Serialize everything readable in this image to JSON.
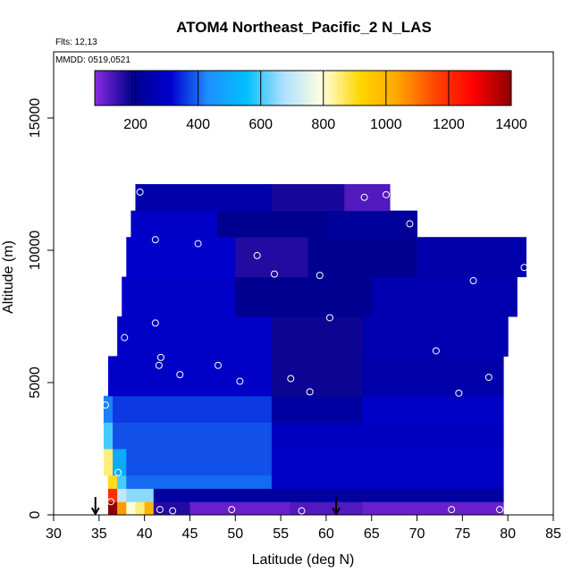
{
  "chart_data": {
    "type": "heatmap",
    "title": "ATOM4 Northeast_Pacific_2 N_LAS",
    "flights_label": "Flts: 12,13",
    "dates_label": "MMDD: 0519,0521",
    "xlabel": "Latitude (deg N)",
    "ylabel": "Altitude (m)",
    "xlim": [
      30,
      85
    ],
    "ylim": [
      0,
      17500
    ],
    "x_ticks": [
      "30",
      "35",
      "40",
      "45",
      "50",
      "55",
      "60",
      "65",
      "70",
      "75",
      "80",
      "85"
    ],
    "y_ticks": [
      "0",
      "5000",
      "10000",
      "15000"
    ],
    "colorbar": {
      "range": [
        70,
        1400
      ],
      "tick_values": [
        200,
        400,
        600,
        800,
        1000,
        1200,
        1400
      ],
      "tick_labels": [
        "200",
        "400",
        "600",
        "800",
        "1000",
        "1200",
        "1400"
      ],
      "colors": [
        "#8a2be2",
        "#00008b",
        "#0000cd",
        "#1e90ff",
        "#00bfff",
        "#b0e0ff",
        "#ffffe0",
        "#ffd700",
        "#ffa500",
        "#ff4500",
        "#ff0000",
        "#8b0000"
      ]
    },
    "grid": false,
    "legend_position": "top",
    "field_rows": [
      {
        "alt": [
          0,
          500
        ],
        "cells": [
          [
            36,
            37,
            1400
          ],
          [
            37,
            38,
            1050
          ],
          [
            38,
            39,
            800
          ],
          [
            39,
            40,
            850
          ],
          [
            40,
            41,
            1000
          ],
          [
            41,
            45,
            160
          ],
          [
            45,
            56,
            100
          ],
          [
            56,
            64,
            120
          ],
          [
            64,
            79.5,
            100
          ]
        ]
      },
      {
        "alt": [
          500,
          1000
        ],
        "cells": [
          [
            36,
            37,
            1200
          ],
          [
            37,
            38,
            700
          ],
          [
            38,
            41,
            650
          ],
          [
            41,
            79.5,
            230
          ]
        ]
      },
      {
        "alt": [
          1000,
          1500
        ],
        "cells": [
          [
            36,
            37,
            900
          ],
          [
            37,
            38,
            600
          ],
          [
            38,
            54,
            400
          ],
          [
            54,
            79.5,
            300
          ]
        ]
      },
      {
        "alt": [
          1500,
          2500
        ],
        "cells": [
          [
            35.5,
            36.5,
            850
          ],
          [
            36.5,
            38,
            500
          ],
          [
            38,
            54,
            380
          ],
          [
            54,
            79.5,
            300
          ]
        ]
      },
      {
        "alt": [
          2500,
          3500
        ],
        "cells": [
          [
            35.5,
            36.5,
            600
          ],
          [
            36.5,
            54,
            380
          ],
          [
            54,
            79.5,
            290
          ]
        ]
      },
      {
        "alt": [
          3500,
          4500
        ],
        "cells": [
          [
            35.5,
            36.5,
            420
          ],
          [
            36.5,
            54,
            360
          ],
          [
            54,
            64,
            230
          ],
          [
            64,
            79.5,
            300
          ]
        ]
      },
      {
        "alt": [
          4500,
          6000
        ],
        "cells": [
          [
            36,
            54,
            300
          ],
          [
            54,
            64,
            180
          ],
          [
            64,
            79.5,
            250
          ]
        ]
      },
      {
        "alt": [
          6000,
          7500
        ],
        "cells": [
          [
            37,
            54,
            300
          ],
          [
            54,
            64,
            180
          ],
          [
            64,
            80,
            260
          ]
        ]
      },
      {
        "alt": [
          7500,
          9000
        ],
        "cells": [
          [
            37.5,
            50,
            300
          ],
          [
            50,
            65,
            200
          ],
          [
            65,
            81,
            260
          ]
        ]
      },
      {
        "alt": [
          9000,
          10500
        ],
        "cells": [
          [
            38,
            50,
            310
          ],
          [
            50,
            58,
            160
          ],
          [
            58,
            70,
            200
          ],
          [
            70,
            82,
            250
          ]
        ]
      },
      {
        "alt": [
          10500,
          11500
        ],
        "cells": [
          [
            38.5,
            48,
            300
          ],
          [
            48,
            60,
            200
          ],
          [
            60,
            70,
            220
          ]
        ]
      },
      {
        "alt": [
          11500,
          12500
        ],
        "cells": [
          [
            39,
            54,
            250
          ],
          [
            54,
            62,
            170
          ],
          [
            62,
            67,
            120
          ]
        ]
      }
    ],
    "observations": [
      {
        "lat": 39.5,
        "alt": 12200
      },
      {
        "lat": 64.2,
        "alt": 12000
      },
      {
        "lat": 66.6,
        "alt": 12100
      },
      {
        "lat": 69.2,
        "alt": 11000
      },
      {
        "lat": 41.2,
        "alt": 10400
      },
      {
        "lat": 45.9,
        "alt": 10250
      },
      {
        "lat": 52.4,
        "alt": 9800
      },
      {
        "lat": 54.3,
        "alt": 9100
      },
      {
        "lat": 59.3,
        "alt": 9050
      },
      {
        "lat": 76.2,
        "alt": 8850
      },
      {
        "lat": 81.8,
        "alt": 9350
      },
      {
        "lat": 41.2,
        "alt": 7250
      },
      {
        "lat": 37.8,
        "alt": 6700
      },
      {
        "lat": 60.4,
        "alt": 7450
      },
      {
        "lat": 41.8,
        "alt": 5950
      },
      {
        "lat": 41.6,
        "alt": 5650
      },
      {
        "lat": 48.1,
        "alt": 5650
      },
      {
        "lat": 43.9,
        "alt": 5300
      },
      {
        "lat": 50.5,
        "alt": 5050
      },
      {
        "lat": 56.1,
        "alt": 5150
      },
      {
        "lat": 58.2,
        "alt": 4650
      },
      {
        "lat": 72.1,
        "alt": 6200
      },
      {
        "lat": 74.6,
        "alt": 4600
      },
      {
        "lat": 77.9,
        "alt": 5200
      },
      {
        "lat": 80.3,
        "alt": 4400
      },
      {
        "lat": 35.7,
        "alt": 4150
      },
      {
        "lat": 37.1,
        "alt": 1600
      },
      {
        "lat": 36.3,
        "alt": 500
      },
      {
        "lat": 41.7,
        "alt": 200
      },
      {
        "lat": 43.1,
        "alt": 150
      },
      {
        "lat": 49.6,
        "alt": 200
      },
      {
        "lat": 57.3,
        "alt": 150
      },
      {
        "lat": 73.8,
        "alt": 200
      },
      {
        "lat": 79.1,
        "alt": 200
      }
    ],
    "arrows": [
      {
        "lat": 34.6
      },
      {
        "lat": 61.1
      }
    ]
  }
}
